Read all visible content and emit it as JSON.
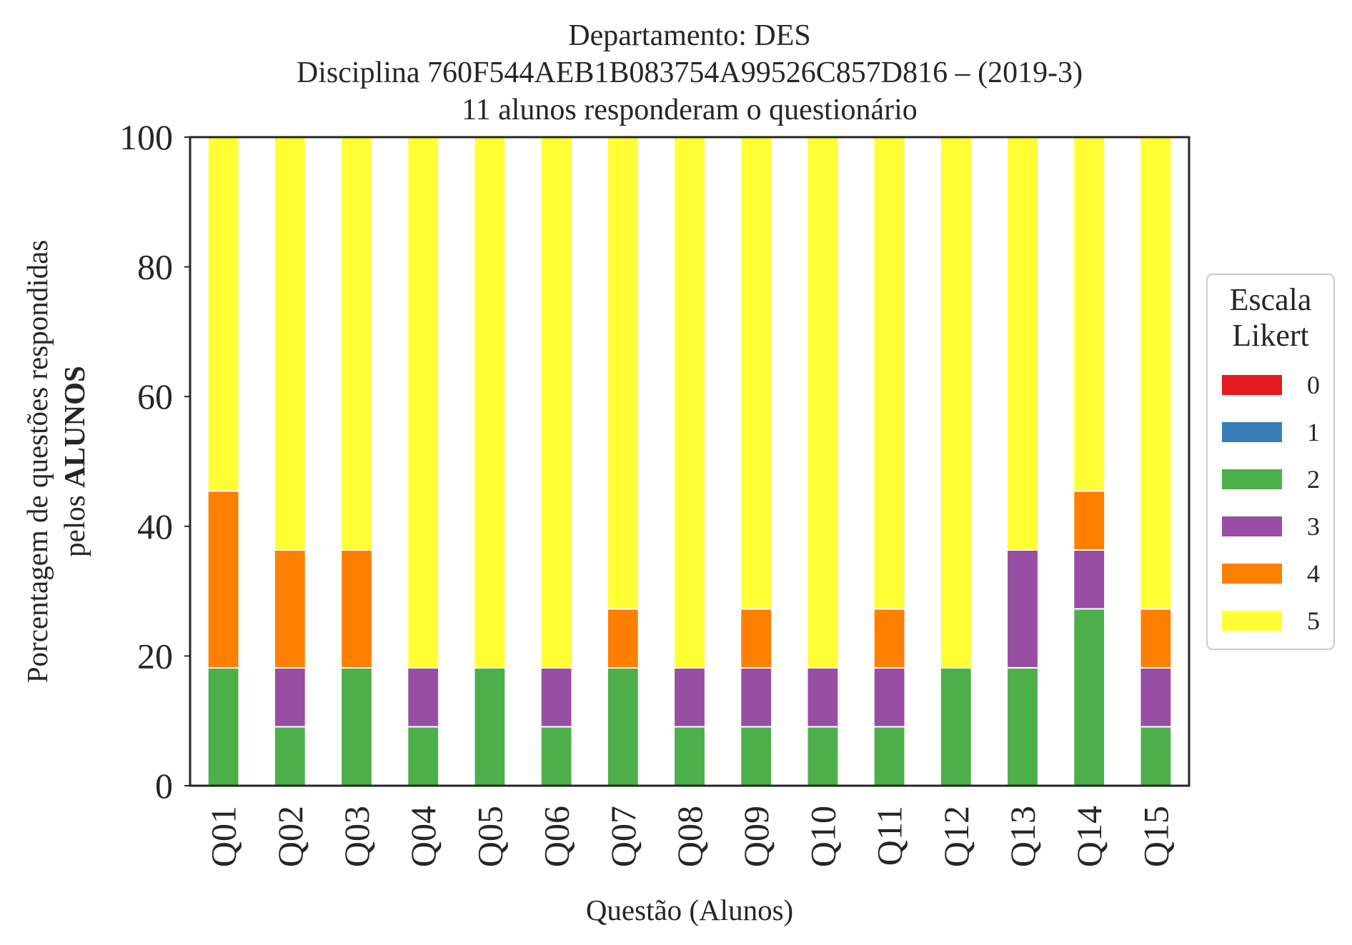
{
  "chart_data": {
    "type": "bar",
    "stacked": true,
    "title": [
      "Departamento: DES",
      "Disciplina 760F544AEB1B083754A99526C857D816 – (2019-3)",
      "11 alunos responderam o questionário"
    ],
    "xlabel": "Questão (Alunos)",
    "ylabel_line1": "Porcentagem de questões respondidas",
    "ylabel_line2_prefix": "pelos",
    "ylabel_line2_bold": "ALUNOS",
    "ylim": [
      0,
      100
    ],
    "yticks": [
      "0",
      "20",
      "40",
      "60",
      "80",
      "100"
    ],
    "grid": false,
    "legend": {
      "title_line1": "Escala",
      "title_line2": "Likert",
      "placement": "right-center"
    },
    "categories": [
      "Q01",
      "Q02",
      "Q03",
      "Q04",
      "Q05",
      "Q06",
      "Q07",
      "Q08",
      "Q09",
      "Q10",
      "Q11",
      "Q12",
      "Q13",
      "Q14",
      "Q15"
    ],
    "series": [
      {
        "name": "0",
        "color": "#e41a1c",
        "values": [
          0,
          0,
          0,
          0,
          0,
          0,
          0,
          0,
          0,
          0,
          0,
          0,
          0,
          0,
          0
        ]
      },
      {
        "name": "1",
        "color": "#377eb8",
        "values": [
          0,
          0,
          0,
          0,
          0,
          0,
          0,
          0,
          0,
          0,
          0,
          0,
          0,
          0,
          0
        ]
      },
      {
        "name": "2",
        "color": "#4daf4a",
        "values": [
          18.18,
          9.09,
          18.18,
          9.09,
          18.18,
          9.09,
          18.18,
          9.09,
          9.09,
          9.09,
          9.09,
          18.18,
          18.18,
          27.27,
          9.09
        ]
      },
      {
        "name": "3",
        "color": "#984ea3",
        "values": [
          0,
          9.09,
          0,
          9.09,
          0,
          9.09,
          0,
          9.09,
          9.09,
          9.09,
          9.09,
          0,
          18.18,
          9.09,
          9.09
        ]
      },
      {
        "name": "4",
        "color": "#ff7f00",
        "values": [
          27.27,
          18.18,
          18.18,
          0,
          0,
          0,
          9.09,
          0,
          9.09,
          0,
          9.09,
          0,
          0,
          9.09,
          9.09
        ]
      },
      {
        "name": "5",
        "color": "#ffff33",
        "values": [
          54.55,
          63.64,
          63.64,
          81.82,
          81.82,
          81.82,
          72.73,
          81.82,
          72.73,
          81.82,
          72.73,
          81.82,
          63.64,
          54.55,
          72.73
        ]
      }
    ]
  }
}
